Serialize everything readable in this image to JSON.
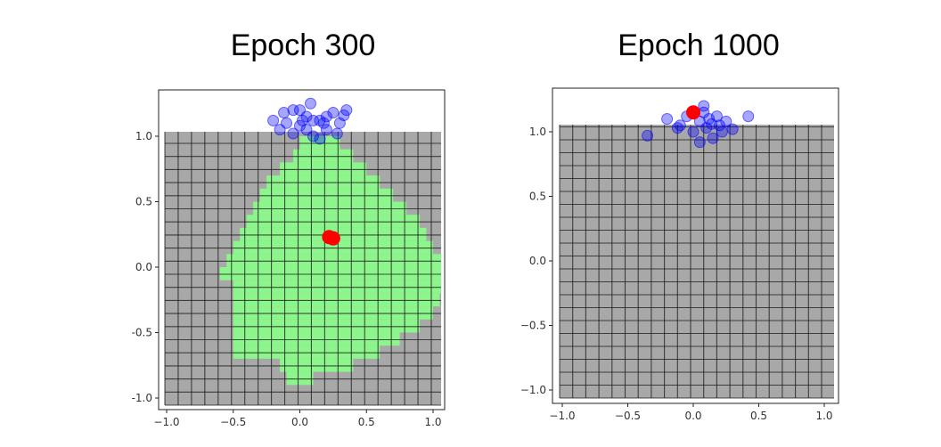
{
  "chart_data": [
    {
      "type": "heatmap",
      "title": "Epoch 300",
      "xlabel": "",
      "ylabel": "",
      "xlim": [
        -1.0,
        1.0
      ],
      "ylim": [
        -1.0,
        1.0
      ],
      "xticks": [
        -1.0,
        -0.5,
        0.0,
        0.5,
        1.0
      ],
      "yticks": [
        -1.0,
        -0.5,
        0.0,
        0.5,
        1.0
      ],
      "xtick_labels": [
        "−1.0",
        "−0.5",
        "0.0",
        "0.5",
        "1.0"
      ],
      "ytick_labels": [
        "-1.0",
        "-0.5",
        "0.0",
        "0.5",
        "1.0"
      ],
      "grid_on": true,
      "colors": {
        "background_cell": "#a8a8a8",
        "region_cell": "#8cf58c",
        "grid_line": "#1a1a1a",
        "samples": "#0000ff",
        "mean": "#ff0000"
      },
      "green_region_rows": [
        {
          "y": 0.95,
          "xmin": 0.05,
          "xmax": 0.25
        },
        {
          "y": 0.85,
          "xmin": 0.0,
          "xmax": 0.35
        },
        {
          "y": 0.75,
          "xmin": -0.1,
          "xmax": 0.45
        },
        {
          "y": 0.65,
          "xmin": -0.2,
          "xmax": 0.55
        },
        {
          "y": 0.55,
          "xmin": -0.25,
          "xmax": 0.65
        },
        {
          "y": 0.45,
          "xmin": -0.3,
          "xmax": 0.75
        },
        {
          "y": 0.35,
          "xmin": -0.35,
          "xmax": 0.85
        },
        {
          "y": 0.25,
          "xmin": -0.4,
          "xmax": 0.9
        },
        {
          "y": 0.15,
          "xmin": -0.45,
          "xmax": 0.95
        },
        {
          "y": 0.05,
          "xmin": -0.5,
          "xmax": 1.05
        },
        {
          "y": -0.05,
          "xmin": -0.55,
          "xmax": 1.05
        },
        {
          "y": -0.15,
          "xmin": -0.45,
          "xmax": 1.05
        },
        {
          "y": -0.25,
          "xmin": -0.45,
          "xmax": 1.0
        },
        {
          "y": -0.35,
          "xmin": -0.45,
          "xmax": 0.95
        },
        {
          "y": -0.45,
          "xmin": -0.45,
          "xmax": 0.85
        },
        {
          "y": -0.55,
          "xmin": -0.45,
          "xmax": 0.7
        },
        {
          "y": -0.65,
          "xmin": -0.45,
          "xmax": 0.55
        },
        {
          "y": -0.75,
          "xmin": -0.1,
          "xmax": 0.35
        },
        {
          "y": -0.85,
          "xmin": -0.05,
          "xmax": 0.05
        }
      ],
      "samples": [
        [
          -0.15,
          1.05
        ],
        [
          -0.1,
          1.1
        ],
        [
          -0.05,
          1.2
        ],
        [
          0.0,
          1.08
        ],
        [
          0.05,
          1.15
        ],
        [
          0.1,
          1.0
        ],
        [
          0.15,
          1.12
        ],
        [
          0.2,
          1.05
        ],
        [
          0.25,
          1.18
        ],
        [
          0.3,
          1.1
        ],
        [
          0.35,
          1.2
        ],
        [
          -0.2,
          1.12
        ],
        [
          -0.05,
          1.02
        ],
        [
          0.0,
          1.2
        ],
        [
          0.05,
          1.05
        ],
        [
          0.1,
          1.12
        ],
        [
          0.15,
          0.98
        ],
        [
          0.2,
          1.15
        ],
        [
          0.28,
          1.02
        ],
        [
          0.33,
          1.16
        ],
        [
          -0.12,
          1.18
        ],
        [
          0.08,
          1.25
        ],
        [
          0.18,
          1.1
        ],
        [
          0.02,
          1.12
        ]
      ],
      "mean_points": [
        [
          0.22,
          0.23
        ],
        [
          0.25,
          0.22
        ]
      ]
    },
    {
      "type": "heatmap",
      "title": "Epoch 1000",
      "xlabel": "",
      "ylabel": "",
      "xlim": [
        -1.0,
        1.0
      ],
      "ylim": [
        -1.0,
        1.0
      ],
      "xticks": [
        -1.0,
        -0.5,
        0.0,
        0.5,
        1.0
      ],
      "yticks": [
        -1.0,
        -0.5,
        0.0,
        0.5,
        1.0
      ],
      "xtick_labels": [
        "−1.0",
        "−0.5",
        "0.0",
        "0.5",
        "1.0"
      ],
      "ytick_labels": [
        "−1.0",
        "−0.5",
        "0.0",
        "0.5",
        "1.0"
      ],
      "grid_on": true,
      "colors": {
        "background_cell": "#a8a8a8",
        "grid_line": "#1a1a1a",
        "samples": "#0000ff",
        "mean": "#ff0000"
      },
      "green_region_rows": [],
      "samples": [
        [
          -0.35,
          0.97
        ],
        [
          -0.2,
          1.1
        ],
        [
          -0.1,
          1.05
        ],
        [
          -0.05,
          1.12
        ],
        [
          0.0,
          1.0
        ],
        [
          0.05,
          1.08
        ],
        [
          0.08,
          1.15
        ],
        [
          0.1,
          1.03
        ],
        [
          0.12,
          1.1
        ],
        [
          0.15,
          0.95
        ],
        [
          0.2,
          1.05
        ],
        [
          0.25,
          1.08
        ],
        [
          0.3,
          1.02
        ],
        [
          0.42,
          1.12
        ],
        [
          0.05,
          0.92
        ],
        [
          0.18,
          1.12
        ],
        [
          -0.12,
          1.03
        ],
        [
          0.22,
          1.0
        ],
        [
          0.08,
          1.2
        ],
        [
          0.14,
          1.06
        ]
      ],
      "mean_points": [
        [
          0.0,
          1.15
        ]
      ]
    }
  ]
}
